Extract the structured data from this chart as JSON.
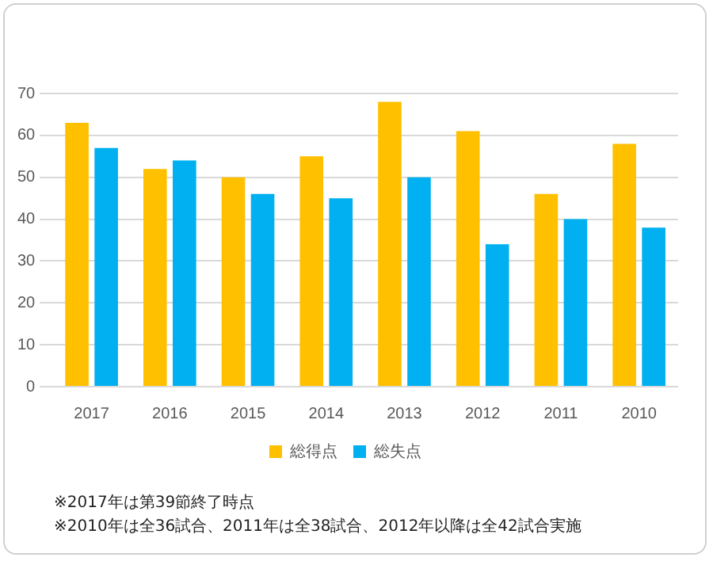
{
  "chart_data": {
    "type": "bar",
    "categories": [
      "2017",
      "2016",
      "2015",
      "2014",
      "2013",
      "2012",
      "2011",
      "2010"
    ],
    "series": [
      {
        "name": "総得点",
        "color": "#ffc000",
        "values": [
          63,
          52,
          50,
          55,
          68,
          61,
          46,
          58
        ]
      },
      {
        "name": "総失点",
        "color": "#00b0f0",
        "values": [
          57,
          54,
          46,
          45,
          50,
          34,
          40,
          38
        ]
      }
    ],
    "ylim": [
      0,
      70
    ],
    "yticks": [
      0,
      10,
      20,
      30,
      40,
      50,
      60,
      70
    ],
    "grid": "y",
    "legend": "bottom",
    "annotations": [
      "※2017年は第39節終了時点",
      "※2010年は全36試合、2011年は全38試合、2012年以降は全42試合実施"
    ]
  }
}
